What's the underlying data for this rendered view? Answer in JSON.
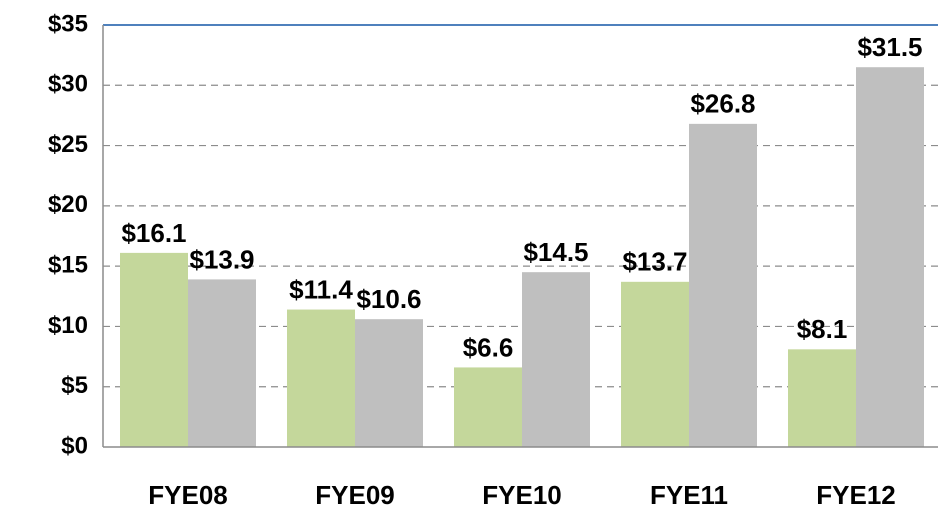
{
  "chart_data": {
    "type": "bar",
    "categories": [
      "FYE08",
      "FYE09",
      "FYE10",
      "FYE11",
      "FYE12"
    ],
    "series": [
      {
        "color": "#c4d79b",
        "values": [
          16.1,
          11.4,
          6.6,
          13.7,
          8.1
        ],
        "value_labels": [
          "$16.1",
          "$11.4",
          "$6.6",
          "$13.7",
          "$8.1"
        ]
      },
      {
        "color": "#bfbfbf",
        "values": [
          13.9,
          10.6,
          14.5,
          26.8,
          31.5
        ],
        "value_labels": [
          "$13.9",
          "$10.6",
          "$14.5",
          "$26.8",
          "$31.5"
        ]
      }
    ],
    "ylim": [
      0,
      35
    ],
    "yticks": [
      {
        "value": 0,
        "label": "$0"
      },
      {
        "value": 5,
        "label": "$5"
      },
      {
        "value": 10,
        "label": "$10"
      },
      {
        "value": 15,
        "label": "$15"
      },
      {
        "value": 20,
        "label": "$20"
      },
      {
        "value": 25,
        "label": "$25"
      },
      {
        "value": 30,
        "label": "$30"
      },
      {
        "value": 35,
        "label": "$35"
      }
    ],
    "grid": true
  }
}
